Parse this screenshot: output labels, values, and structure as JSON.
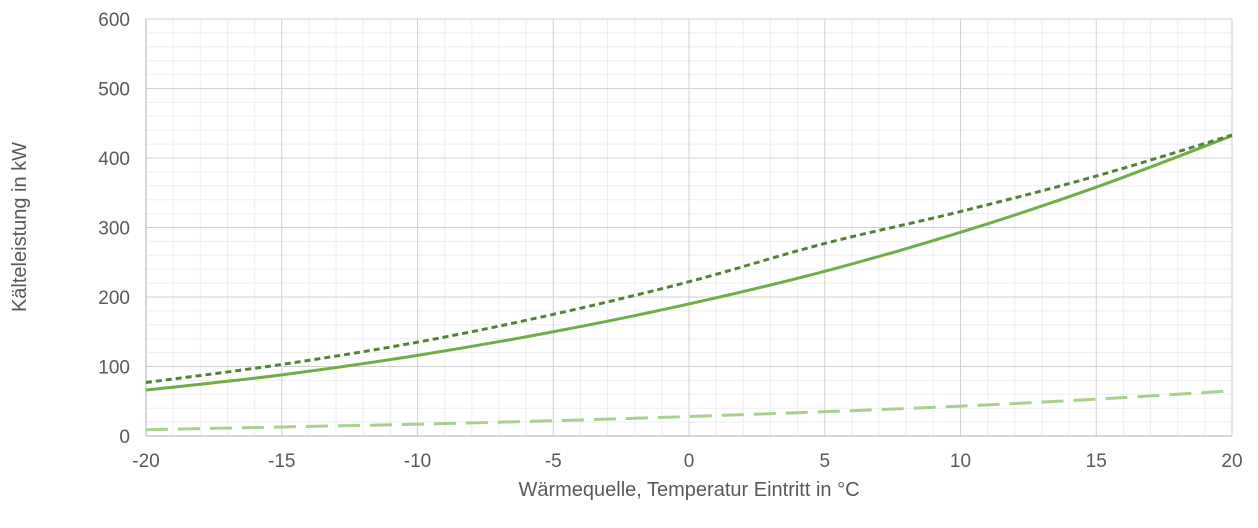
{
  "chart_data": {
    "type": "line",
    "title": "",
    "xlabel": "Wärmequelle, Temperatur Eintritt in °C",
    "ylabel": "Kälteleistung in kW",
    "xlim": [
      -20,
      20
    ],
    "ylim": [
      0,
      600
    ],
    "xticks": [
      -20,
      -15,
      -10,
      -5,
      0,
      5,
      10,
      15,
      20
    ],
    "yticks": [
      0,
      100,
      200,
      300,
      400,
      500,
      600
    ],
    "x_minor_step": 1,
    "y_minor_step": 20,
    "grid": true,
    "legend": "none",
    "series": [
      {
        "color": "#70AD47",
        "style": "solid",
        "x": [
          -20,
          -15,
          -10,
          -5,
          0,
          5,
          10,
          15,
          20
        ],
        "y": [
          66,
          88,
          116,
          150,
          190,
          237,
          293,
          358,
          432
        ]
      },
      {
        "color": "#548235",
        "style": "dotted",
        "x": [
          -20,
          -15,
          -10,
          -5,
          0,
          5,
          10,
          15,
          20
        ],
        "y": [
          77,
          103,
          135,
          175,
          222,
          277,
          323,
          374,
          433
        ]
      },
      {
        "color": "#A9D18E",
        "style": "dashed",
        "x": [
          -20,
          -15,
          -10,
          -5,
          0,
          5,
          10,
          15,
          20
        ],
        "y": [
          9,
          13,
          17,
          22,
          28,
          35,
          43,
          53,
          65
        ]
      }
    ]
  }
}
